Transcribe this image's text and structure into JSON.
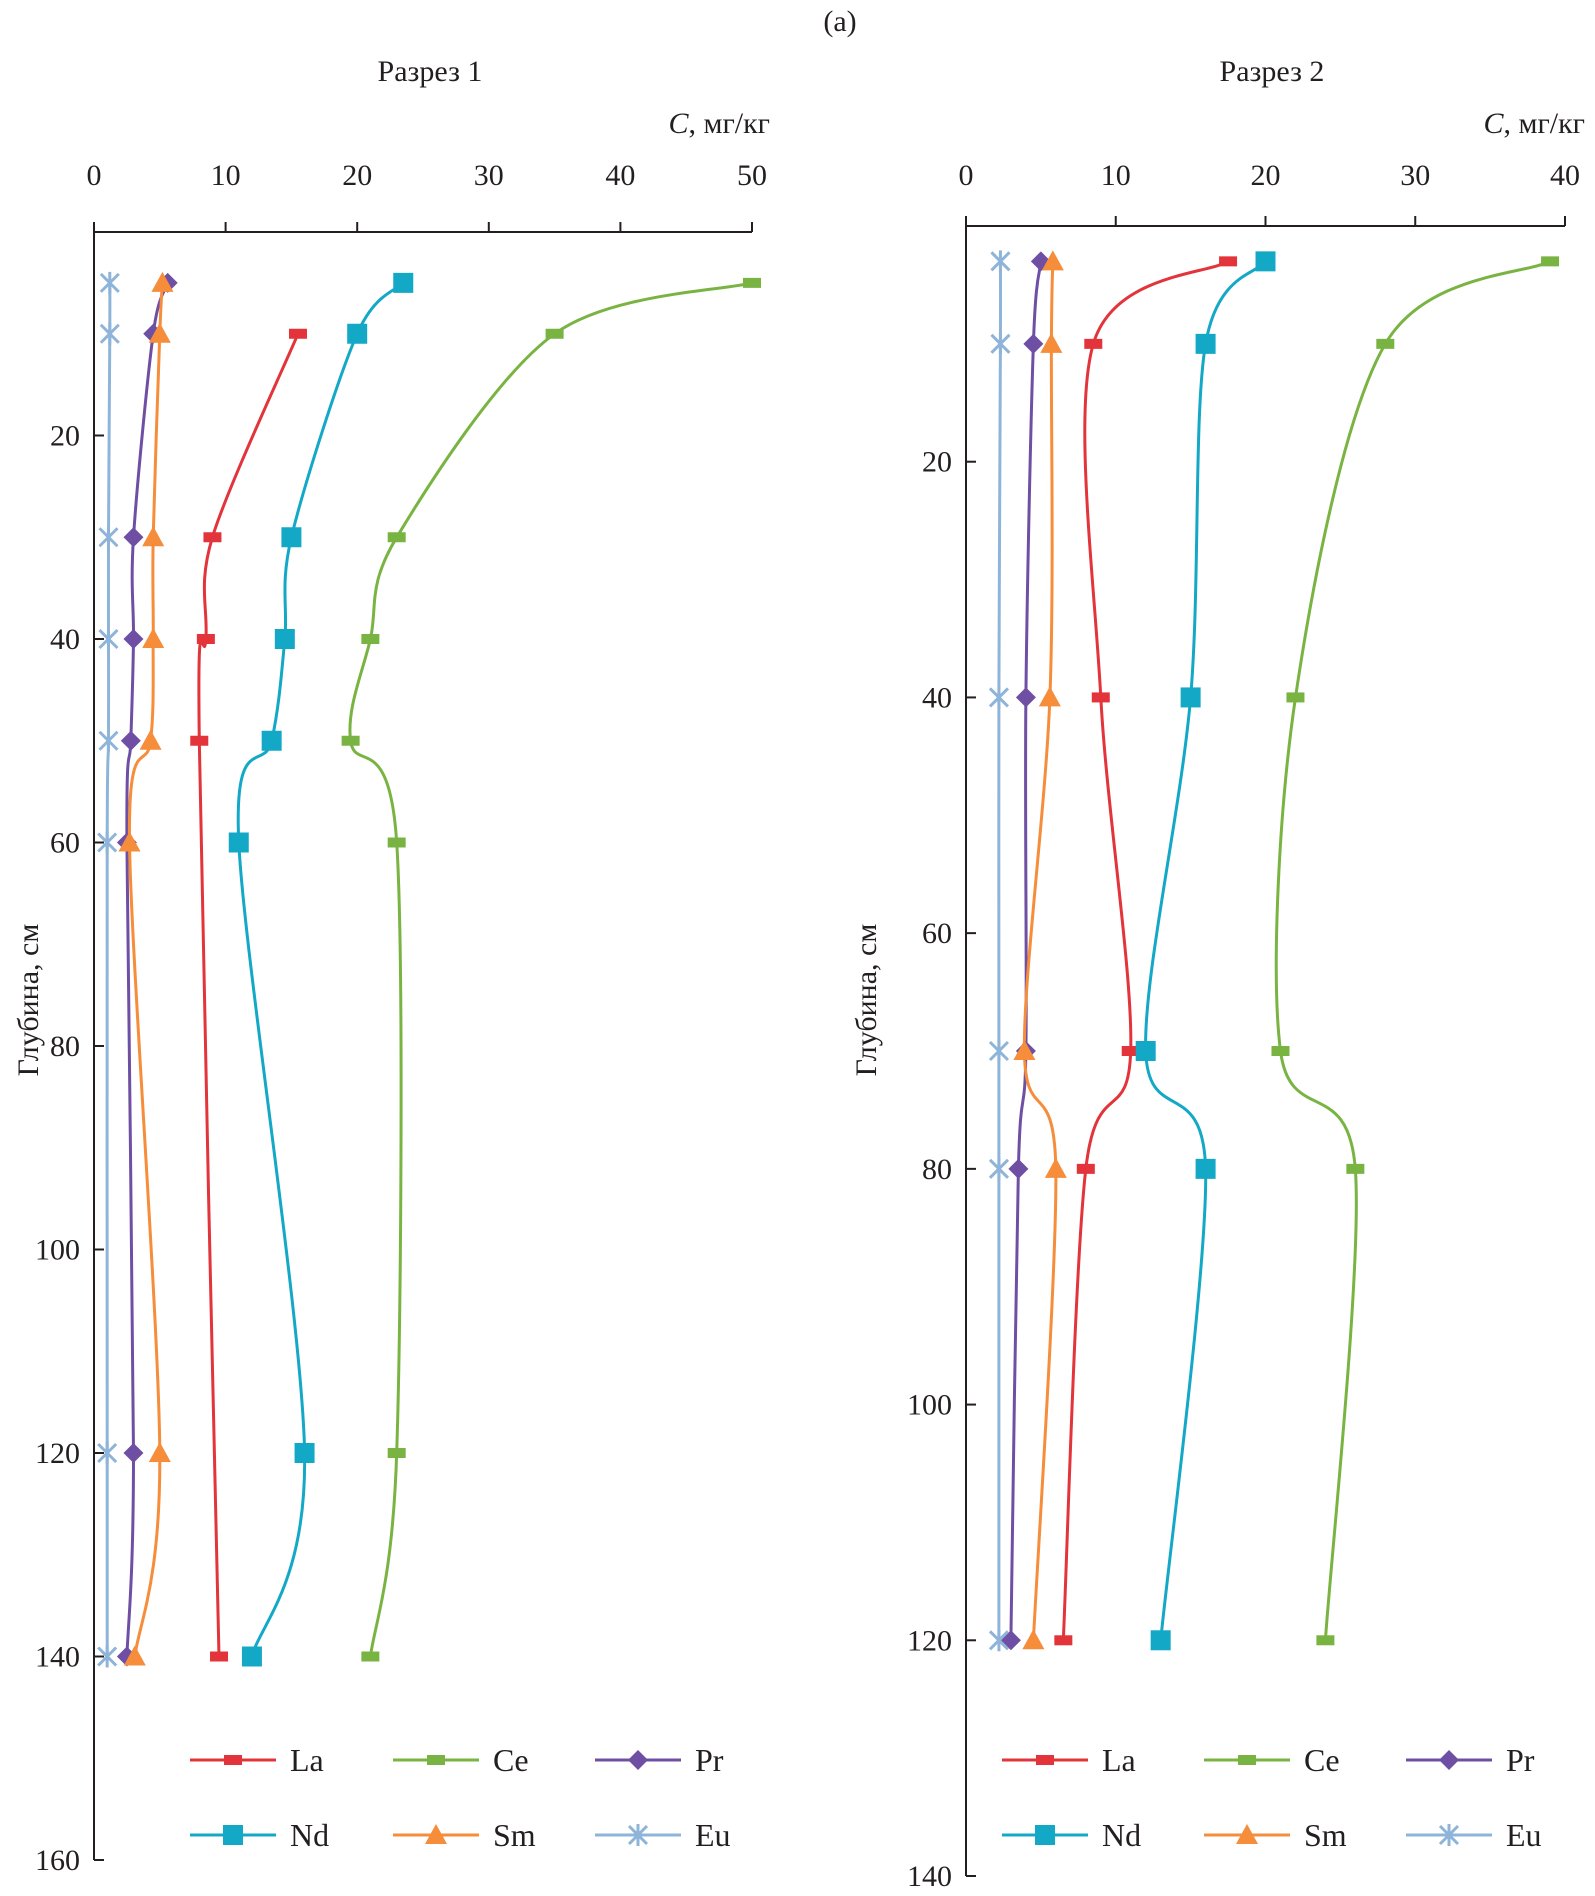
{
  "figure_label": "(a)",
  "colors": {
    "La": "#e2343a",
    "Ce": "#79b443",
    "Pr": "#6f4fa3",
    "Nd": "#14a8c7",
    "Sm": "#f58d3b",
    "Eu": "#8fb4d9",
    "axis": "#231f20"
  },
  "chart_data": [
    {
      "type": "line",
      "title": "Разрез 1",
      "xlabel_italic": "C",
      "xlabel_rest": ", мг/кг",
      "ylabel": "Глубина, см",
      "xlim": [
        0,
        50
      ],
      "ylim": [
        0,
        160
      ],
      "y_inverted": true,
      "x_axis_position": "top",
      "xticks": [
        0,
        10,
        20,
        30,
        40,
        50
      ],
      "yticks": [
        20,
        40,
        60,
        80,
        100,
        120,
        140,
        160
      ],
      "legend_position": "bottom",
      "series": [
        {
          "name": "La",
          "marker": "dash",
          "points": [
            [
              15.5,
              10
            ],
            [
              9,
              30
            ],
            [
              8.5,
              40
            ],
            [
              8,
              50
            ],
            [
              9.5,
              140
            ]
          ]
        },
        {
          "name": "Ce",
          "marker": "dash",
          "points": [
            [
              50,
              5
            ],
            [
              35,
              10
            ],
            [
              23,
              30
            ],
            [
              21,
              40
            ],
            [
              19.5,
              50
            ],
            [
              23,
              60
            ],
            [
              23,
              120
            ],
            [
              21,
              140
            ]
          ]
        },
        {
          "name": "Pr",
          "marker": "diamond",
          "points": [
            [
              5.6,
              5
            ],
            [
              4.5,
              10
            ],
            [
              3,
              30
            ],
            [
              3,
              40
            ],
            [
              2.8,
              50
            ],
            [
              2.5,
              60
            ],
            [
              3,
              120
            ],
            [
              2.5,
              140
            ]
          ]
        },
        {
          "name": "Nd",
          "marker": "square",
          "points": [
            [
              23.5,
              5
            ],
            [
              20,
              10
            ],
            [
              15,
              30
            ],
            [
              14.5,
              40
            ],
            [
              13.5,
              50
            ],
            [
              11,
              60
            ],
            [
              16,
              120
            ],
            [
              12,
              140
            ]
          ]
        },
        {
          "name": "Sm",
          "marker": "triangle",
          "points": [
            [
              5.2,
              5
            ],
            [
              5,
              10
            ],
            [
              4.5,
              30
            ],
            [
              4.5,
              40
            ],
            [
              4.3,
              50
            ],
            [
              2.7,
              60
            ],
            [
              5,
              120
            ],
            [
              3.1,
              140
            ]
          ]
        },
        {
          "name": "Eu",
          "marker": "x",
          "points": [
            [
              1.2,
              5
            ],
            [
              1.2,
              10
            ],
            [
              1.1,
              30
            ],
            [
              1.1,
              40
            ],
            [
              1.1,
              50
            ],
            [
              1,
              60
            ],
            [
              1,
              120
            ],
            [
              1,
              140
            ]
          ]
        }
      ]
    },
    {
      "type": "line",
      "title": "Разрез 2",
      "xlabel_italic": "C",
      "xlabel_rest": ", мг/кг",
      "ylabel": "Глубина, см",
      "xlim": [
        0,
        40
      ],
      "ylim": [
        0,
        140
      ],
      "y_inverted": true,
      "x_axis_position": "top",
      "xticks": [
        0,
        10,
        20,
        30,
        40
      ],
      "yticks": [
        20,
        40,
        60,
        80,
        100,
        120,
        140
      ],
      "legend_position": "bottom",
      "series": [
        {
          "name": "La",
          "marker": "dash",
          "points": [
            [
              17.5,
              3
            ],
            [
              8.5,
              10
            ],
            [
              9,
              40
            ],
            [
              11,
              70
            ],
            [
              8,
              80
            ],
            [
              6.5,
              120
            ]
          ]
        },
        {
          "name": "Ce",
          "marker": "dash",
          "points": [
            [
              39,
              3
            ],
            [
              28,
              10
            ],
            [
              22,
              40
            ],
            [
              21,
              70
            ],
            [
              26,
              80
            ],
            [
              24,
              120
            ]
          ]
        },
        {
          "name": "Pr",
          "marker": "diamond",
          "points": [
            [
              5,
              3
            ],
            [
              4.5,
              10
            ],
            [
              4,
              40
            ],
            [
              4,
              70
            ],
            [
              3.5,
              80
            ],
            [
              3,
              120
            ]
          ]
        },
        {
          "name": "Nd",
          "marker": "square",
          "points": [
            [
              20,
              3
            ],
            [
              16,
              10
            ],
            [
              15,
              40
            ],
            [
              12,
              70
            ],
            [
              16,
              80
            ],
            [
              13,
              120
            ]
          ]
        },
        {
          "name": "Sm",
          "marker": "triangle",
          "points": [
            [
              5.8,
              3
            ],
            [
              5.7,
              10
            ],
            [
              5.6,
              40
            ],
            [
              3.9,
              70
            ],
            [
              6,
              80
            ],
            [
              4.5,
              120
            ]
          ]
        },
        {
          "name": "Eu",
          "marker": "x",
          "points": [
            [
              2.3,
              3
            ],
            [
              2.3,
              10
            ],
            [
              2.2,
              40
            ],
            [
              2.2,
              70
            ],
            [
              2.2,
              80
            ],
            [
              2.2,
              120
            ]
          ]
        }
      ]
    }
  ]
}
